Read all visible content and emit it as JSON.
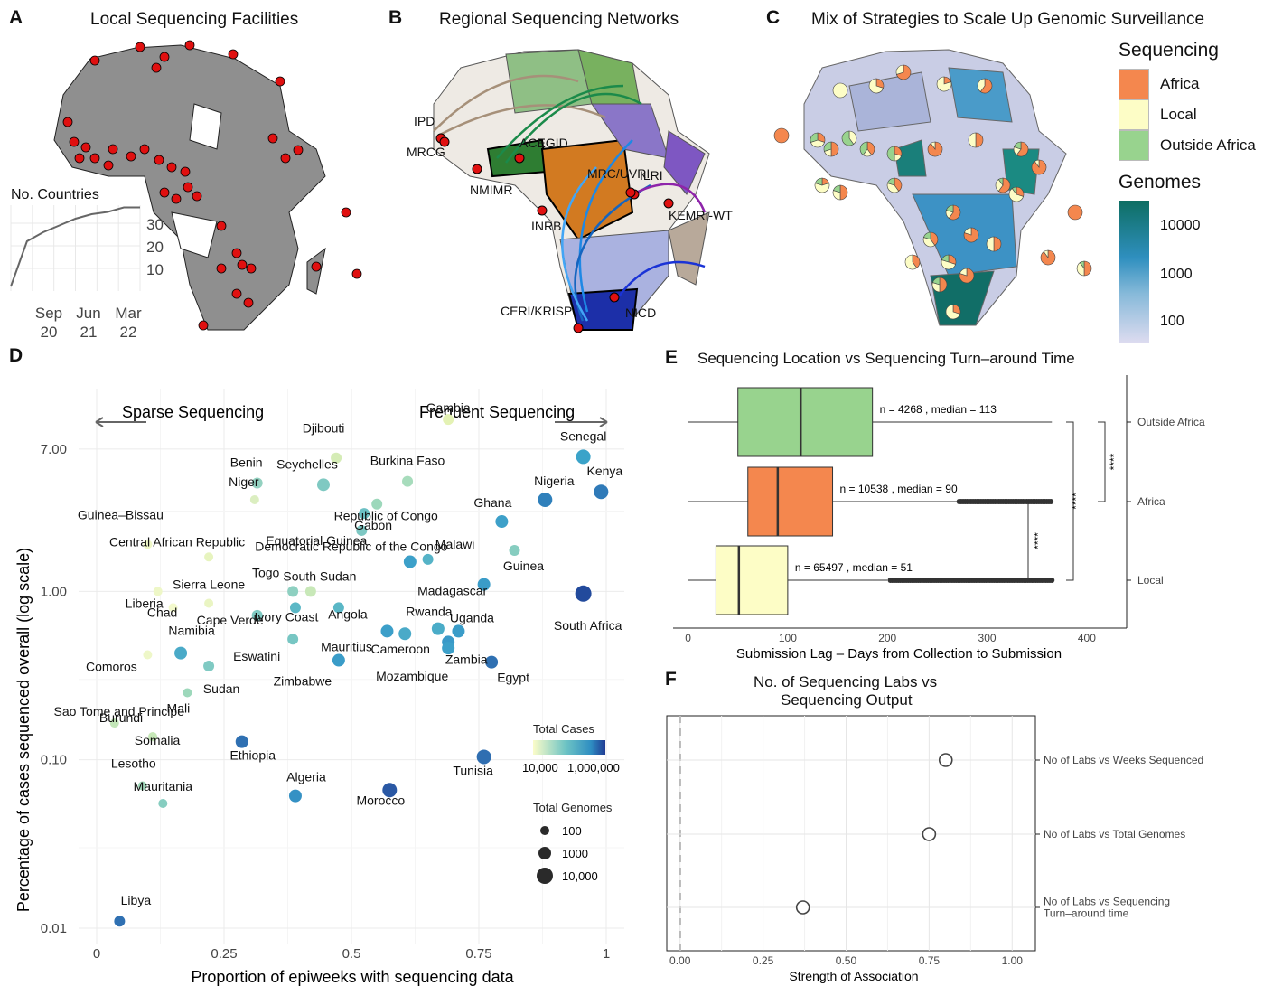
{
  "panels": {
    "A": {
      "letter": "A",
      "title": "Local Sequencing Facilities",
      "inset": {
        "title": "No. Countries",
        "yticks": [
          "30",
          "20",
          "10"
        ],
        "xticks": [
          [
            "Sep",
            "20"
          ],
          [
            "Jun",
            "21"
          ],
          [
            "Mar",
            "22"
          ]
        ]
      }
    },
    "B": {
      "letter": "B",
      "title": "Regional Sequencing Networks",
      "hubs": [
        "IPD",
        "MRCG",
        "NMIMR",
        "ACEGID",
        "MRC/UVRI",
        "ILRI",
        "KEMRI-WT",
        "INRB",
        "CERI/KRISP",
        "NICD"
      ]
    },
    "C": {
      "letter": "C",
      "title": "Mix of Strategies to Scale Up Genomic Surveillance",
      "legend_seq_title": "Sequencing",
      "legend_seq_items": [
        {
          "label": "Africa",
          "color": "#f4874e"
        },
        {
          "label": "Local",
          "color": "#fdfdc6"
        },
        {
          "label": "Outside Africa",
          "color": "#98d38e"
        }
      ],
      "legend_gen_title": "Genomes",
      "legend_gen_ticks": [
        "10000",
        "1000",
        "100"
      ]
    },
    "D": {
      "letter": "D",
      "arrow_left": "Sparse Sequencing",
      "arrow_right": "Frequent Sequencing",
      "xlabel": "Proportion of epiweeks with sequencing data",
      "ylabel": "Percentage of cases sequenced overall (log scale)",
      "legend_cases_title": "Total Cases",
      "legend_cases_ticks": [
        "10,000",
        "1,000,000"
      ],
      "legend_genomes_title": "Total Genomes",
      "legend_genomes_items": [
        "100",
        "1000",
        "10,000"
      ]
    },
    "E": {
      "letter": "E",
      "title": "Sequencing Location vs Sequencing Turn–around Time",
      "xlabel": "Submission Lag – Days from Collection to Submission",
      "sig": [
        "****",
        "****",
        "****"
      ]
    },
    "F": {
      "letter": "F",
      "title_line1": "No. of Sequencing Labs vs",
      "title_line2": "Sequencing Output",
      "xlabel": "Strength of Association"
    }
  },
  "chart_data": [
    {
      "id": "A-inset",
      "type": "line",
      "title": "No. Countries",
      "x": [
        "2020-07",
        "2020-09",
        "2020-11",
        "2021-02",
        "2021-06",
        "2021-09",
        "2021-12",
        "2022-01",
        "2022-03"
      ],
      "y": [
        2,
        22,
        26,
        29,
        32,
        34,
        35,
        37,
        37
      ],
      "ylim": [
        0,
        38
      ]
    },
    {
      "id": "D",
      "type": "scatter",
      "xlabel": "Proportion of epiweeks with sequencing data",
      "ylabel": "Percentage of cases sequenced overall (log scale)",
      "xlim": [
        0,
        1
      ],
      "ylim": [
        0.01,
        12
      ],
      "yscale": "log",
      "xticks": [
        "0",
        "0.25",
        "0.5",
        "0.75",
        "1"
      ],
      "yticks": [
        "0.01",
        "0.10",
        "1.00",
        "7.00"
      ],
      "points": [
        {
          "name": "Gambia",
          "x": 0.69,
          "y": 10.5,
          "r": 6,
          "color": "#e4f2b4"
        },
        {
          "name": "Djibouti",
          "x": 0.47,
          "y": 6.2,
          "r": 6,
          "color": "#d5ecb6"
        },
        {
          "name": "Senegal",
          "x": 0.955,
          "y": 6.3,
          "r": 8,
          "color": "#3ba3c9"
        },
        {
          "name": "Benin",
          "x": 0.315,
          "y": 4.4,
          "r": 6,
          "color": "#93d1c0"
        },
        {
          "name": "Seychelles",
          "x": 0.445,
          "y": 4.3,
          "r": 7,
          "color": "#7fc9c2"
        },
        {
          "name": "Burkina Faso",
          "x": 0.61,
          "y": 4.5,
          "r": 6,
          "color": "#a7dcbc"
        },
        {
          "name": "Kenya",
          "x": 0.99,
          "y": 3.9,
          "r": 8,
          "color": "#2f7ab8"
        },
        {
          "name": "Niger",
          "x": 0.31,
          "y": 3.5,
          "r": 5,
          "color": "#dbeec0"
        },
        {
          "name": "Republic of Congo",
          "x": 0.55,
          "y": 3.3,
          "r": 6,
          "color": "#9dd8bb"
        },
        {
          "name": "Nigeria",
          "x": 0.88,
          "y": 3.5,
          "r": 8,
          "color": "#2f80bb"
        },
        {
          "name": "Guinea–Bissau",
          "x": 0.1,
          "y": 1.9,
          "r": 5,
          "color": "#eef7c6"
        },
        {
          "name": "Gabon",
          "x": 0.525,
          "y": 2.9,
          "r": 6,
          "color": "#6cc0c4"
        },
        {
          "name": "Equatorial Guinea",
          "x": 0.52,
          "y": 2.3,
          "r": 6,
          "color": "#7ec8c3"
        },
        {
          "name": "Ghana",
          "x": 0.795,
          "y": 2.6,
          "r": 7,
          "color": "#3da0c9"
        },
        {
          "name": "Malawi",
          "x": 0.65,
          "y": 1.55,
          "r": 6,
          "color": "#55b3c7"
        },
        {
          "name": "Central African Republic",
          "x": 0.22,
          "y": 1.6,
          "r": 5,
          "color": "#e7f4bf"
        },
        {
          "name": "Guinea",
          "x": 0.82,
          "y": 1.75,
          "r": 6,
          "color": "#86cdc0"
        },
        {
          "name": "Democratic Republic of the Congo",
          "x": 0.615,
          "y": 1.5,
          "r": 7,
          "color": "#3ca0c9"
        },
        {
          "name": "Liberia",
          "x": 0.12,
          "y": 1.0,
          "r": 5,
          "color": "#eef7c7"
        },
        {
          "name": "Togo",
          "x": 0.385,
          "y": 1.0,
          "r": 6,
          "color": "#8ed0c1"
        },
        {
          "name": "South Sudan",
          "x": 0.42,
          "y": 1.0,
          "r": 6,
          "color": "#c8e8b8"
        },
        {
          "name": "Madagascar",
          "x": 0.76,
          "y": 1.1,
          "r": 7,
          "color": "#3a9cc8"
        },
        {
          "name": "Sierra Leone",
          "x": 0.22,
          "y": 0.85,
          "r": 5,
          "color": "#eaf5c3"
        },
        {
          "name": "Chad",
          "x": 0.15,
          "y": 0.8,
          "r": 5,
          "color": "#f3f9cc"
        },
        {
          "name": "Angola",
          "x": 0.475,
          "y": 0.8,
          "r": 6,
          "color": "#5ab7c6"
        },
        {
          "name": "Cape Verde",
          "x": 0.315,
          "y": 0.72,
          "r": 6,
          "color": "#80cac3"
        },
        {
          "name": "Ivory Coast",
          "x": 0.39,
          "y": 0.8,
          "r": 6,
          "color": "#5cb8c6"
        },
        {
          "name": "South Africa",
          "x": 0.955,
          "y": 0.97,
          "r": 9,
          "color": "#224a9c"
        },
        {
          "name": "Rwanda",
          "x": 0.67,
          "y": 0.6,
          "r": 7,
          "color": "#4aacc8"
        },
        {
          "name": "Uganda",
          "x": 0.71,
          "y": 0.58,
          "r": 7,
          "color": "#3a9cc8"
        },
        {
          "name": "Mauritius",
          "x": 0.57,
          "y": 0.58,
          "r": 7,
          "color": "#3c9fc9"
        },
        {
          "name": "Cameroon",
          "x": 0.605,
          "y": 0.56,
          "r": 7,
          "color": "#4aaac8"
        },
        {
          "name": "Eswatini",
          "x": 0.385,
          "y": 0.52,
          "r": 6,
          "color": "#77c6c3"
        },
        {
          "name": "Zambia",
          "x": 0.69,
          "y": 0.5,
          "r": 7,
          "color": "#3a99c8"
        },
        {
          "name": "Mozambique",
          "x": 0.69,
          "y": 0.46,
          "r": 7,
          "color": "#3da0c9"
        },
        {
          "name": "Namibia",
          "x": 0.165,
          "y": 0.43,
          "r": 7,
          "color": "#4aaac8"
        },
        {
          "name": "Comoros",
          "x": 0.1,
          "y": 0.42,
          "r": 5,
          "color": "#eef7c8"
        },
        {
          "name": "Zimbabwe",
          "x": 0.475,
          "y": 0.39,
          "r": 7,
          "color": "#3a9cc8"
        },
        {
          "name": "Sudan",
          "x": 0.22,
          "y": 0.36,
          "r": 6,
          "color": "#80cac3"
        },
        {
          "name": "Egypt",
          "x": 0.775,
          "y": 0.38,
          "r": 7,
          "color": "#2f70b2"
        },
        {
          "name": "Mali",
          "x": 0.178,
          "y": 0.25,
          "r": 5,
          "color": "#9dd8bb"
        },
        {
          "name": "Sao Tome and Principe",
          "x": 0.035,
          "y": 0.165,
          "r": 5,
          "color": "#c3e6b8"
        },
        {
          "name": "Burundi",
          "x": 0.11,
          "y": 0.137,
          "r": 5,
          "color": "#b6e2ba"
        },
        {
          "name": "Ethiopia",
          "x": 0.285,
          "y": 0.128,
          "r": 7,
          "color": "#2f70b2"
        },
        {
          "name": "Somalia",
          "x": 0.11,
          "y": 0.137,
          "r": 5,
          "color": "#c7e8b8"
        },
        {
          "name": "Tunisia",
          "x": 0.76,
          "y": 0.104,
          "r": 8,
          "color": "#2f6eb1"
        },
        {
          "name": "Lesotho",
          "x": 0.09,
          "y": 0.07,
          "r": 5,
          "color": "#a1d9bb"
        },
        {
          "name": "Mauritania",
          "x": 0.13,
          "y": 0.055,
          "r": 5,
          "color": "#86cdc0"
        },
        {
          "name": "Algeria",
          "x": 0.39,
          "y": 0.061,
          "r": 7,
          "color": "#3591c4"
        },
        {
          "name": "Morocco",
          "x": 0.575,
          "y": 0.066,
          "r": 8,
          "color": "#2a58a4"
        },
        {
          "name": "Libya",
          "x": 0.045,
          "y": 0.011,
          "r": 6,
          "color": "#2f70b2"
        }
      ]
    },
    {
      "id": "E",
      "type": "box",
      "title": "Sequencing Location vs Sequencing Turn–around Time",
      "xlabel": "Submission Lag – Days from Collection to Submission",
      "xlim": [
        -15,
        440
      ],
      "xticks": [
        0,
        100,
        200,
        300,
        400
      ],
      "groups": [
        {
          "name": "Outside Africa",
          "n_label": "n = 4268 , median = 113",
          "min": 0,
          "q1": 50,
          "median": 113,
          "q3": 185,
          "max": 365,
          "color": "#98d38e",
          "outlier_from": null
        },
        {
          "name": "Africa",
          "n_label": "n = 10538 , median = 90",
          "min": 0,
          "q1": 60,
          "median": 90,
          "q3": 145,
          "max": 270,
          "color": "#f4874e",
          "outlier_from": 272
        },
        {
          "name": "Local",
          "n_label": "n = 65497 , median = 51",
          "min": 0,
          "q1": 28,
          "median": 51,
          "q3": 100,
          "max": 200,
          "color": "#fdfdc6",
          "outlier_from": 203
        }
      ]
    },
    {
      "id": "F",
      "type": "scatter",
      "title": "No. of Sequencing Labs vs Sequencing Output",
      "xlabel": "Strength of Association",
      "xlim": [
        -0.04,
        1.07
      ],
      "xticks": [
        "0.00",
        "0.25",
        "0.50",
        "0.75",
        "1.00"
      ],
      "rows": [
        {
          "label": "No of Labs vs Weeks Sequenced",
          "value": 0.8
        },
        {
          "label": "No of Labs vs Total Genomes",
          "value": 0.75
        },
        {
          "label": "No of Labs vs Sequencing Turn–around time",
          "label_lines": [
            "No of Labs vs Sequencing",
            "Turn–around time"
          ],
          "value": 0.37
        }
      ]
    }
  ]
}
